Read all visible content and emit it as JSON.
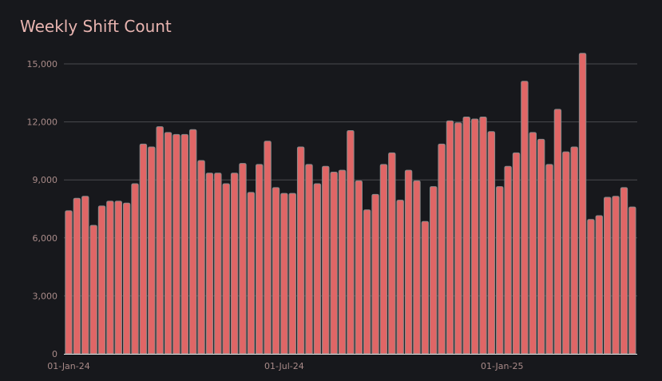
{
  "chart_data": {
    "type": "bar",
    "title": "Weekly Shift Count",
    "xlabel": "",
    "ylabel": "",
    "start_date": "2024-01-01",
    "interval_days": 7,
    "values": [
      7400,
      8050,
      8150,
      6650,
      7650,
      7900,
      7900,
      7800,
      8800,
      10850,
      10700,
      11750,
      11450,
      11350,
      11350,
      11600,
      10000,
      9350,
      9350,
      8800,
      9350,
      9850,
      8350,
      9800,
      11000,
      8600,
      8300,
      8300,
      10700,
      9800,
      8800,
      9700,
      9400,
      9500,
      11550,
      8950,
      7450,
      8250,
      9800,
      10400,
      7950,
      9500,
      8950,
      6850,
      8650,
      10850,
      12050,
      11950,
      12250,
      12150,
      12250,
      11500,
      8650,
      9700,
      10400,
      14100,
      11450,
      11100,
      9800,
      12650,
      10450,
      10700,
      15550,
      6950,
      7150,
      8100,
      8150,
      8600,
      7600
    ],
    "ylim": [
      0,
      15600
    ],
    "yticks": [
      0,
      3000,
      6000,
      9000,
      12000,
      15000
    ],
    "ytick_labels": [
      "0",
      "3,000",
      "6,000",
      "9,000",
      "12,000",
      "15,000"
    ],
    "xticks_days": [
      0,
      182,
      366
    ],
    "xtick_labels": [
      "01-Jan-24",
      "01-Jul-24",
      "01-Jan-25"
    ],
    "grid": true,
    "bar_color": "#e06666",
    "bar_edge_color": "#8a8a8a"
  }
}
